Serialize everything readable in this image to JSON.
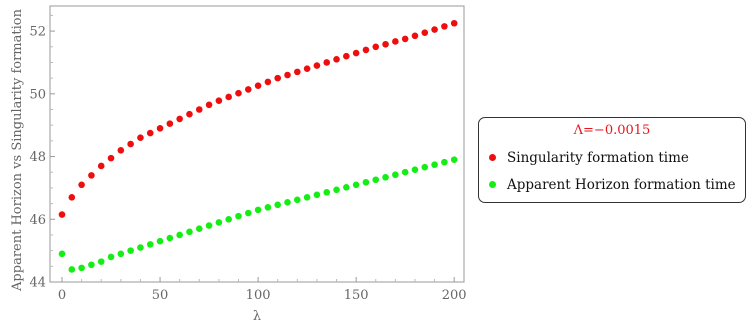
{
  "chart_data": {
    "type": "scatter",
    "title": "",
    "xlabel": "λ",
    "ylabel": "Apparent Horizon vs Singularity formation",
    "xlim": [
      0,
      205
    ],
    "ylim": [
      44,
      52.8
    ],
    "xticks": [
      0,
      50,
      100,
      150,
      200
    ],
    "xtick_labels": [
      "0",
      "50",
      "100",
      "150",
      "200"
    ],
    "yticks": [
      44,
      46,
      48,
      50,
      52
    ],
    "ytick_labels": [
      "44",
      "46",
      "48",
      "50",
      "52"
    ],
    "grid": false,
    "legend": {
      "title": "Λ=−0.0015",
      "title_color": "#e8151d",
      "placement": "right"
    },
    "series": [
      {
        "name": "Singularity formation time",
        "color": "#ee0e0e",
        "x": [
          0,
          5,
          10,
          15,
          20,
          25,
          30,
          35,
          40,
          45,
          50,
          55,
          60,
          65,
          70,
          75,
          80,
          85,
          90,
          95,
          100,
          105,
          110,
          115,
          120,
          125,
          130,
          135,
          140,
          145,
          150,
          155,
          160,
          165,
          170,
          175,
          180,
          185,
          190,
          195,
          200
        ],
        "y": [
          46.15,
          46.7,
          47.1,
          47.4,
          47.7,
          47.95,
          48.2,
          48.4,
          48.6,
          48.75,
          48.9,
          49.05,
          49.2,
          49.35,
          49.5,
          49.65,
          49.78,
          49.9,
          50.02,
          50.14,
          50.26,
          50.38,
          50.5,
          50.6,
          50.7,
          50.8,
          50.9,
          51.0,
          51.1,
          51.2,
          51.3,
          51.4,
          51.5,
          51.58,
          51.67,
          51.75,
          51.85,
          51.95,
          52.05,
          52.15,
          52.25
        ]
      },
      {
        "name": "Apparent Horizon formation time",
        "color": "#14ee14",
        "x": [
          0,
          5,
          10,
          15,
          20,
          25,
          30,
          35,
          40,
          45,
          50,
          55,
          60,
          65,
          70,
          75,
          80,
          85,
          90,
          95,
          100,
          105,
          110,
          115,
          120,
          125,
          130,
          135,
          140,
          145,
          150,
          155,
          160,
          165,
          170,
          175,
          180,
          185,
          190,
          195,
          200
        ],
        "y": [
          44.9,
          44.4,
          44.45,
          44.55,
          44.65,
          44.8,
          44.9,
          45.0,
          45.1,
          45.2,
          45.3,
          45.4,
          45.5,
          45.6,
          45.7,
          45.8,
          45.9,
          46.0,
          46.1,
          46.2,
          46.3,
          46.38,
          46.46,
          46.54,
          46.62,
          46.7,
          46.78,
          46.86,
          46.94,
          47.02,
          47.1,
          47.18,
          47.26,
          47.34,
          47.42,
          47.5,
          47.58,
          47.66,
          47.74,
          47.82,
          47.9
        ]
      }
    ]
  }
}
